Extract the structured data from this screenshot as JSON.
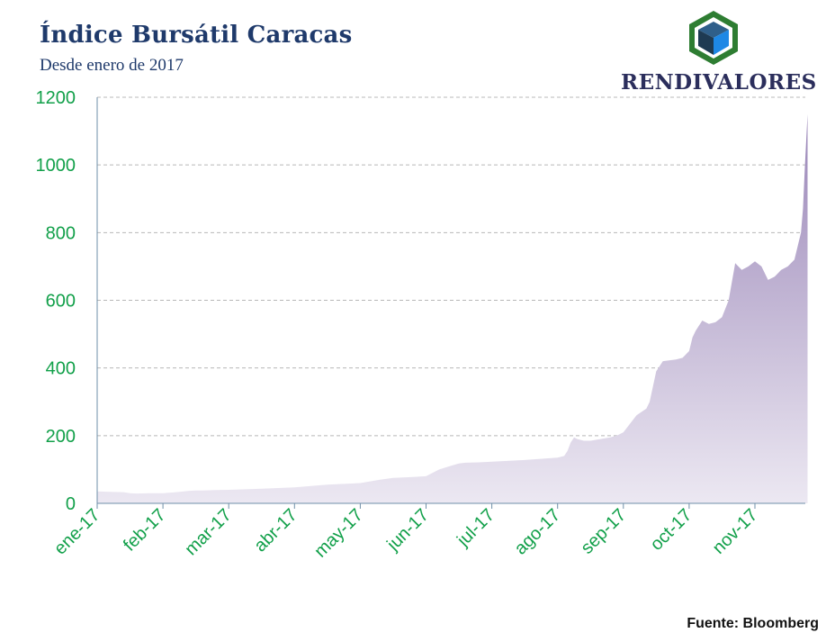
{
  "header": {
    "title": "Índice Bursátil Caracas",
    "subtitle": "Desde enero de 2017"
  },
  "logo": {
    "text": "RENDIVALORES",
    "icon": "cube-hexagon-icon",
    "colors": {
      "hexagon": "#2e7d32",
      "cube_dark": "#1e3a52",
      "cube_blue": "#1e88e5"
    }
  },
  "source": "Fuente: Bloomberg",
  "colors": {
    "axis_labels": "#12a04a",
    "area_top": "#9a86b8",
    "area_bottom": "#ece8f2",
    "grid": "#b8b8b8",
    "axis": "#6f8fa8"
  },
  "chart_data": {
    "type": "area",
    "xlabel": "",
    "ylabel": "",
    "ylim": [
      0,
      1200
    ],
    "yticks": [
      0,
      200,
      400,
      600,
      800,
      1000,
      1200
    ],
    "xticks": [
      "ene-17",
      "feb-17",
      "mar-17",
      "abr-17",
      "may-17",
      "jun-17",
      "jul-17",
      "ago-17",
      "sep-17",
      "oct-17",
      "nov-17"
    ],
    "grid": true,
    "legend": "none",
    "series": [
      {
        "x": [
          0,
          0.2,
          0.4,
          0.5,
          0.6,
          0.8,
          1.0,
          1.2,
          1.4,
          1.5,
          1.6,
          1.8,
          2.0,
          2.5,
          3.0,
          3.5,
          3.8,
          4.0,
          4.3,
          4.5,
          4.8,
          5.0,
          5.2,
          5.4,
          5.5,
          5.6,
          5.8,
          6.0,
          6.5,
          7.0,
          7.1,
          7.15,
          7.2,
          7.25,
          7.3,
          7.4,
          7.5,
          7.6,
          7.8,
          7.9,
          8.0,
          8.2,
          8.35,
          8.4,
          8.5,
          8.6,
          8.8,
          8.9,
          9.0,
          9.05,
          9.1,
          9.2,
          9.3,
          9.4,
          9.5,
          9.6,
          9.7,
          9.8,
          9.9,
          10.0,
          10.1,
          10.2,
          10.3,
          10.4,
          10.5,
          10.6,
          10.7,
          10.73,
          10.76,
          10.8
        ],
        "values": [
          35,
          34,
          33,
          30,
          29,
          30,
          30,
          33,
          37,
          38,
          38,
          39,
          40,
          43,
          47,
          55,
          58,
          60,
          70,
          75,
          78,
          80,
          100,
          112,
          118,
          120,
          121,
          123,
          128,
          135,
          140,
          155,
          180,
          195,
          190,
          185,
          185,
          188,
          195,
          200,
          210,
          260,
          280,
          300,
          390,
          420,
          425,
          430,
          450,
          490,
          510,
          540,
          530,
          535,
          550,
          600,
          710,
          690,
          700,
          715,
          700,
          660,
          670,
          690,
          700,
          720,
          800,
          870,
          1000,
          1150
        ]
      }
    ]
  }
}
